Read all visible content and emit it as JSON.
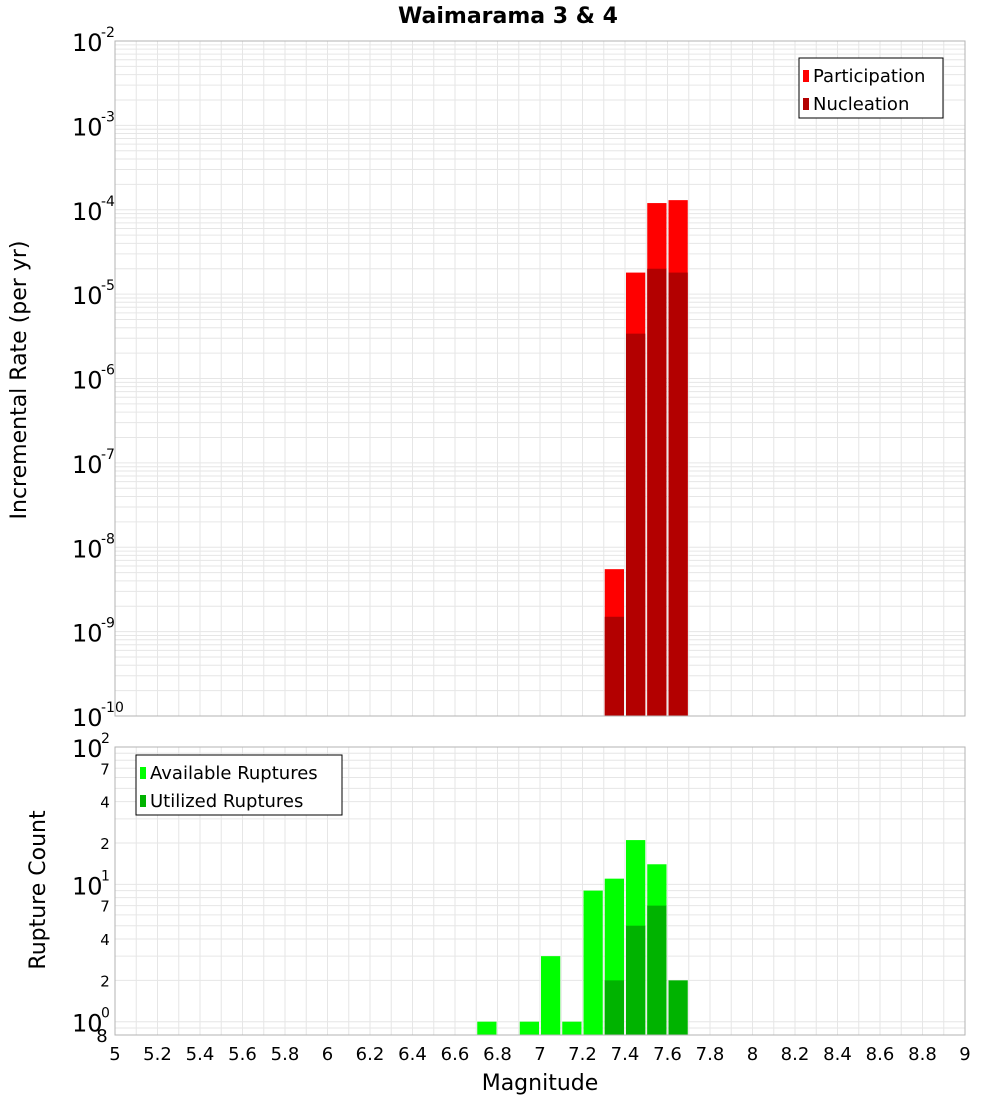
{
  "chart_data": [
    {
      "type": "bar",
      "title": "Waimarama 3 & 4",
      "ylabel": "Incremental Rate (per yr)",
      "xlabel": "",
      "x_range": [
        5,
        9
      ],
      "y_scale": "log",
      "y_range": [
        1e-10,
        0.01
      ],
      "y_tick_exponents": [
        "-10",
        "-9",
        "-8",
        "-7",
        "-6",
        "-5",
        "-4",
        "-3",
        "-2"
      ],
      "grid": true,
      "legend_position": "top-right",
      "bar_width": 0.1,
      "series": [
        {
          "name": "Participation",
          "color": "#ff0000",
          "points": [
            {
              "x": 7.35,
              "y": 5.5e-09
            },
            {
              "x": 7.45,
              "y": 1.8e-05
            },
            {
              "x": 7.55,
              "y": 0.00012
            },
            {
              "x": 7.65,
              "y": 0.00013
            }
          ]
        },
        {
          "name": "Nucleation",
          "color": "#b30000",
          "points": [
            {
              "x": 7.35,
              "y": 1.5e-09
            },
            {
              "x": 7.45,
              "y": 3.4e-06
            },
            {
              "x": 7.55,
              "y": 2e-05
            },
            {
              "x": 7.65,
              "y": 1.8e-05
            }
          ]
        }
      ]
    },
    {
      "type": "bar",
      "title": "",
      "ylabel": "Rupture Count",
      "xlabel": "Magnitude",
      "x_range": [
        5,
        9
      ],
      "x_ticks": [
        "5",
        "5.2",
        "5.4",
        "5.6",
        "5.8",
        "6",
        "6.2",
        "6.4",
        "6.6",
        "6.8",
        "7",
        "7.2",
        "7.4",
        "7.6",
        "7.8",
        "8",
        "8.2",
        "8.4",
        "8.6",
        "8.8",
        "9"
      ],
      "y_scale": "log",
      "y_range": [
        0.8,
        100
      ],
      "y_major_ticks": [
        {
          "value": 1,
          "base": "10",
          "exp": "0"
        },
        {
          "value": 10,
          "base": "10",
          "exp": "1"
        },
        {
          "value": 100,
          "base": "10",
          "exp": "2"
        }
      ],
      "y_minor_labels": [
        {
          "value": 0.8,
          "label": "8"
        },
        {
          "value": 2,
          "label": "2"
        },
        {
          "value": 4,
          "label": "4"
        },
        {
          "value": 7,
          "label": "7"
        },
        {
          "value": 20,
          "label": "2"
        },
        {
          "value": 40,
          "label": "4"
        },
        {
          "value": 70,
          "label": "7"
        }
      ],
      "grid": true,
      "legend_position": "top-left",
      "bar_width": 0.1,
      "series": [
        {
          "name": "Available Ruptures",
          "color": "#00ff00",
          "points": [
            {
              "x": 6.75,
              "y": 1
            },
            {
              "x": 6.95,
              "y": 1
            },
            {
              "x": 7.05,
              "y": 3
            },
            {
              "x": 7.15,
              "y": 1
            },
            {
              "x": 7.25,
              "y": 9
            },
            {
              "x": 7.35,
              "y": 11
            },
            {
              "x": 7.45,
              "y": 21
            },
            {
              "x": 7.55,
              "y": 14
            }
          ]
        },
        {
          "name": "Utilized Ruptures",
          "color": "#00b300",
          "points": [
            {
              "x": 7.35,
              "y": 2
            },
            {
              "x": 7.45,
              "y": 5
            },
            {
              "x": 7.55,
              "y": 7
            },
            {
              "x": 7.65,
              "y": 2
            }
          ]
        }
      ]
    }
  ]
}
